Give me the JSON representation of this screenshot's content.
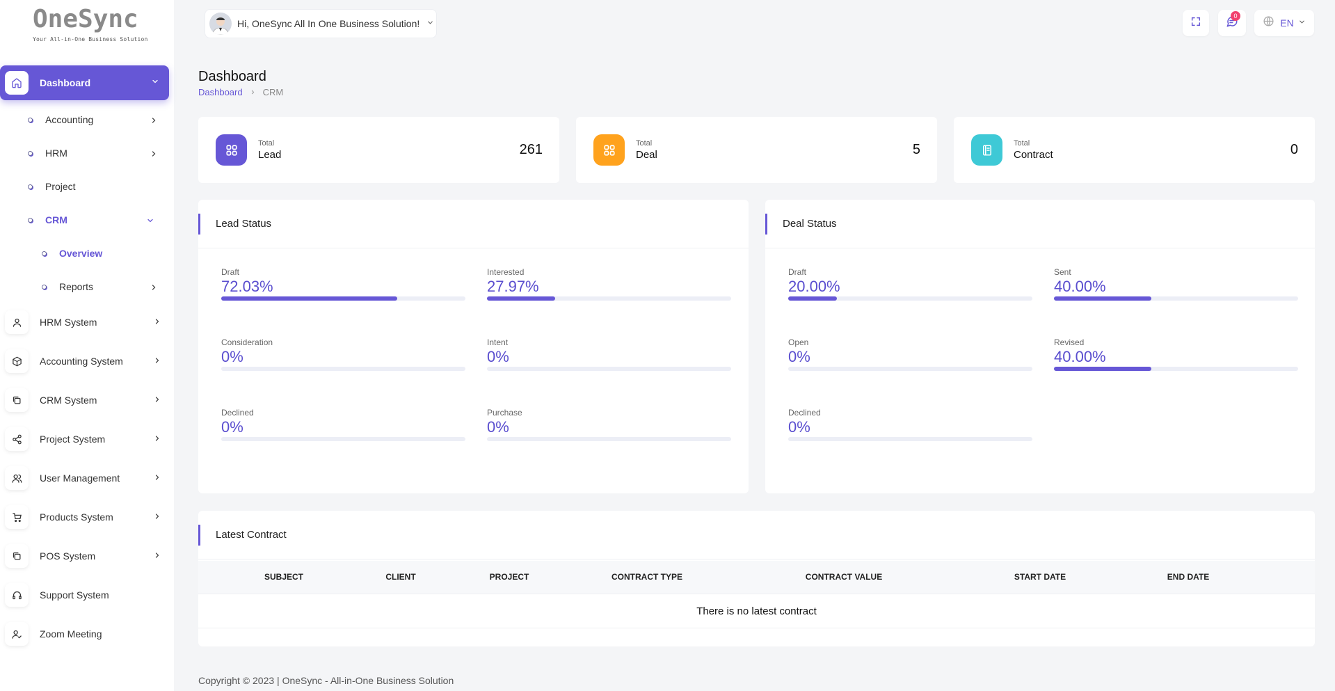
{
  "logo": {
    "title": "OneSync",
    "subtitle": "Your All-in-One Business Solution"
  },
  "sidebar": {
    "active": {
      "label": "Dashboard",
      "icon": "home-icon"
    },
    "dashboard_children": [
      {
        "label": "Accounting",
        "has_children": true
      },
      {
        "label": "HRM",
        "has_children": true
      },
      {
        "label": "Project",
        "has_children": false
      },
      {
        "label": "CRM",
        "has_children": true,
        "expanded": true
      }
    ],
    "crm_children": [
      {
        "label": "Overview",
        "active": true
      },
      {
        "label": "Reports",
        "has_children": true
      }
    ],
    "items": [
      {
        "label": "HRM System",
        "icon": "user-icon",
        "has_children": true
      },
      {
        "label": "Accounting System",
        "icon": "box-icon",
        "has_children": true
      },
      {
        "label": "CRM System",
        "icon": "layers-icon",
        "has_children": true
      },
      {
        "label": "Project System",
        "icon": "share-icon",
        "has_children": true
      },
      {
        "label": "User Management",
        "icon": "users-icon",
        "has_children": true
      },
      {
        "label": "Products System",
        "icon": "cart-icon",
        "has_children": true
      },
      {
        "label": "POS System",
        "icon": "layers-icon",
        "has_children": true
      },
      {
        "label": "Support System",
        "icon": "headphones-icon",
        "has_children": false
      },
      {
        "label": "Zoom Meeting",
        "icon": "user-check-icon",
        "has_children": false
      }
    ]
  },
  "header": {
    "greeting": "Hi, OneSync All In One Business Solution!",
    "notification_count": "0",
    "language": "EN"
  },
  "page": {
    "title": "Dashboard",
    "breadcrumb": {
      "link": "Dashboard",
      "current": "CRM"
    }
  },
  "stats": [
    {
      "small": "Total",
      "label": "Lead",
      "value": "261",
      "color": "#6657d6",
      "icon": "grid-icon"
    },
    {
      "small": "Total",
      "label": "Deal",
      "value": "5",
      "color": "#ffa21d",
      "icon": "grid-icon"
    },
    {
      "small": "Total",
      "label": "Contract",
      "value": "0",
      "color": "#3ec9d6",
      "icon": "report-icon"
    }
  ],
  "lead_status": {
    "title": "Lead Status",
    "metrics": [
      {
        "label": "Draft",
        "value": "72.03%",
        "percent": 72.03
      },
      {
        "label": "Interested",
        "value": "27.97%",
        "percent": 27.97
      },
      {
        "label": "Consideration",
        "value": "0%",
        "percent": 0
      },
      {
        "label": "Intent",
        "value": "0%",
        "percent": 0
      },
      {
        "label": "Declined",
        "value": "0%",
        "percent": 0
      },
      {
        "label": "Purchase",
        "value": "0%",
        "percent": 0
      }
    ]
  },
  "deal_status": {
    "title": "Deal Status",
    "metrics": [
      {
        "label": "Draft",
        "value": "20.00%",
        "percent": 20
      },
      {
        "label": "Sent",
        "value": "40.00%",
        "percent": 40
      },
      {
        "label": "Open",
        "value": "0%",
        "percent": 0
      },
      {
        "label": "Revised",
        "value": "40.00%",
        "percent": 40
      },
      {
        "label": "Declined",
        "value": "0%",
        "percent": 0
      }
    ]
  },
  "latest_contract": {
    "title": "Latest Contract",
    "columns": [
      "SUBJECT",
      "CLIENT",
      "PROJECT",
      "CONTRACT TYPE",
      "CONTRACT VALUE",
      "START DATE",
      "END DATE"
    ],
    "empty_message": "There is no latest contract"
  },
  "footer": {
    "text": "Copyright © 2023 | OneSync - All-in-One Business Solution"
  },
  "colors": {
    "accent": "#6657d6",
    "badge": "#f2426e"
  }
}
